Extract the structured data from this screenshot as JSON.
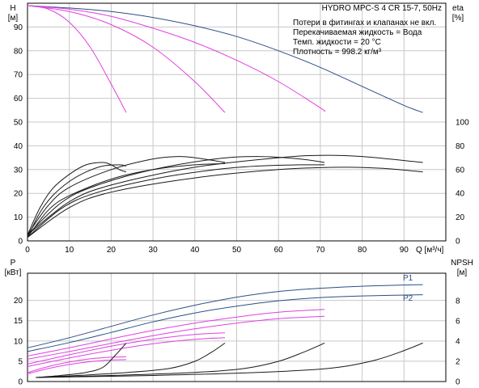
{
  "header": {
    "title": "HYDRO MPC-S 4 CR 15-7, 50Hz",
    "notes": [
      "Потери в фитингах и клапанах не вкл.",
      "Перекачиваемая жидкость = Вода",
      "Темп. жидкости = 20 °C",
      "Плотность = 998.2 кг/м³"
    ]
  },
  "colors": {
    "frame": "#000000",
    "grid": "#c8c8c8",
    "blue": "#2b4f86",
    "magenta": "#e040e0",
    "black": "#1a1a1a"
  },
  "chart_data": [
    {
      "id": "top",
      "type": "line",
      "xlabel": "Q [м³/ч]",
      "xlim": [
        0,
        100
      ],
      "xticks": [
        0,
        10,
        20,
        30,
        40,
        50,
        60,
        70,
        80,
        90
      ],
      "left_axis": {
        "label": "H",
        "unit": "[м]",
        "lim": [
          0,
          100
        ],
        "ticks": [
          0,
          10,
          20,
          30,
          40,
          50,
          60,
          70,
          80,
          90
        ]
      },
      "right_axis": {
        "label": "eta",
        "unit": "[%]",
        "lim": [
          0,
          200
        ],
        "ticks": [
          0,
          20,
          40,
          60,
          80,
          100
        ]
      },
      "grid": true,
      "series": [
        {
          "axis": "left",
          "color": "blue",
          "x": [
            0,
            10,
            20,
            30,
            40,
            50,
            60,
            70,
            80,
            90,
            94.5
          ],
          "y": [
            99,
            98,
            96.5,
            94,
            90.5,
            86,
            80,
            73,
            65,
            57,
            54
          ]
        },
        {
          "axis": "left",
          "color": "magenta",
          "x": [
            0,
            10,
            20,
            30,
            40,
            50,
            60,
            70,
            71
          ],
          "y": [
            99,
            97.5,
            94.5,
            89.5,
            83.5,
            76,
            67,
            56,
            54.5
          ]
        },
        {
          "axis": "left",
          "color": "magenta",
          "x": [
            0,
            10,
            20,
            30,
            40,
            47.2
          ],
          "y": [
            99,
            96.5,
            91,
            81.5,
            67,
            54
          ]
        },
        {
          "axis": "left",
          "color": "magenta",
          "x": [
            0,
            5,
            10,
            15,
            20,
            23.6
          ],
          "y": [
            99,
            97.5,
            92,
            81.5,
            66,
            54
          ]
        },
        {
          "axis": "right",
          "color": "black",
          "x": [
            0,
            3,
            6,
            10,
            14,
            18,
            20,
            22,
            23.6
          ],
          "y": [
            5,
            28,
            44,
            56,
            64,
            66,
            64,
            60,
            58
          ]
        },
        {
          "axis": "right",
          "color": "black",
          "x": [
            0,
            3,
            6,
            10,
            14,
            18,
            22,
            23.6
          ],
          "y": [
            3,
            24,
            38,
            50,
            58,
            63,
            64,
            63
          ]
        },
        {
          "axis": "right",
          "color": "black",
          "x": [
            0,
            5,
            10,
            20,
            30,
            36,
            40,
            47.2
          ],
          "y": [
            5,
            30,
            45,
            60,
            69,
            71,
            70,
            66
          ]
        },
        {
          "axis": "right",
          "color": "black",
          "x": [
            0,
            5,
            10,
            20,
            30,
            40,
            47.2
          ],
          "y": [
            3,
            26,
            38,
            52,
            60,
            64,
            65
          ]
        },
        {
          "axis": "right",
          "color": "black",
          "x": [
            0,
            8,
            16,
            30,
            45,
            55,
            65,
            71
          ],
          "y": [
            5,
            32,
            46,
            60,
            69,
            71,
            69,
            66
          ]
        },
        {
          "axis": "right",
          "color": "black",
          "x": [
            0,
            8,
            16,
            30,
            45,
            55,
            65,
            71
          ],
          "y": [
            3,
            27,
            40,
            52,
            60,
            63,
            64,
            64
          ]
        },
        {
          "axis": "right",
          "color": "black",
          "x": [
            0,
            10,
            20,
            40,
            60,
            70,
            80,
            94.5
          ],
          "y": [
            5,
            33,
            47,
            62,
            70,
            72,
            71,
            66
          ]
        },
        {
          "axis": "right",
          "color": "black",
          "x": [
            0,
            10,
            20,
            40,
            60,
            75,
            85,
            94.5
          ],
          "y": [
            3,
            28,
            41,
            53,
            60,
            62,
            61,
            58
          ]
        }
      ]
    },
    {
      "id": "bottom",
      "type": "line",
      "xlim": [
        0,
        100
      ],
      "left_axis": {
        "label": "P",
        "unit": "[кВт]",
        "lim": [
          0,
          26.7
        ],
        "ticks": [
          0,
          5,
          10,
          15,
          20
        ]
      },
      "right_axis": {
        "label": "NPSH",
        "unit": "[м]",
        "lim": [
          0,
          10.7
        ],
        "ticks": [
          0,
          2,
          4,
          6,
          8
        ]
      },
      "grid": true,
      "annotations": [
        "P1",
        "P2"
      ],
      "series": [
        {
          "axis": "left",
          "color": "blue",
          "name": "P1",
          "x": [
            0,
            10,
            20,
            30,
            40,
            50,
            60,
            70,
            80,
            94.5
          ],
          "y": [
            8.3,
            10.8,
            13.6,
            16.4,
            18.8,
            20.8,
            22.2,
            23.0,
            23.5,
            23.9
          ]
        },
        {
          "axis": "left",
          "color": "blue",
          "name": "P2",
          "x": [
            0,
            10,
            20,
            30,
            40,
            50,
            60,
            70,
            80,
            94.5
          ],
          "y": [
            7.4,
            9.6,
            12.1,
            14.7,
            16.9,
            18.6,
            19.9,
            20.7,
            21.1,
            21.4
          ]
        },
        {
          "axis": "left",
          "color": "magenta",
          "x": [
            0,
            10,
            20,
            30,
            40,
            50,
            60,
            71
          ],
          "y": [
            6.3,
            8.3,
            10.5,
            12.6,
            14.4,
            15.9,
            17.1,
            17.8
          ]
        },
        {
          "axis": "left",
          "color": "magenta",
          "x": [
            0,
            10,
            20,
            30,
            40,
            50,
            60,
            71
          ],
          "y": [
            5.5,
            7.4,
            9.4,
            11.3,
            13.0,
            14.4,
            15.5,
            16.1
          ]
        },
        {
          "axis": "left",
          "color": "magenta",
          "x": [
            0,
            10,
            20,
            30,
            40,
            47.2
          ],
          "y": [
            4.3,
            6.6,
            8.7,
            10.4,
            11.6,
            12.0
          ]
        },
        {
          "axis": "left",
          "color": "magenta",
          "x": [
            0,
            10,
            20,
            30,
            40,
            47.2
          ],
          "y": [
            3.7,
            5.8,
            7.7,
            9.3,
            10.4,
            10.8
          ]
        },
        {
          "axis": "left",
          "color": "magenta",
          "x": [
            0,
            5,
            10,
            15,
            20,
            23.6
          ],
          "y": [
            2.2,
            3.7,
            4.8,
            5.6,
            6.0,
            6.1
          ]
        },
        {
          "axis": "left",
          "color": "magenta",
          "x": [
            0,
            5,
            10,
            15,
            20,
            23.6
          ],
          "y": [
            1.9,
            3.2,
            4.2,
            4.9,
            5.3,
            5.4
          ]
        },
        {
          "axis": "right",
          "color": "black",
          "x": [
            2,
            8,
            14,
            18,
            21,
            23.6
          ],
          "y": [
            0.4,
            0.6,
            0.9,
            1.4,
            2.6,
            3.8
          ]
        },
        {
          "axis": "right",
          "color": "black",
          "x": [
            2,
            12,
            24,
            34,
            40,
            44,
            47.2
          ],
          "y": [
            0.4,
            0.6,
            0.9,
            1.3,
            2.0,
            2.9,
            3.8
          ]
        },
        {
          "axis": "right",
          "color": "black",
          "x": [
            2,
            20,
            40,
            52,
            60,
            66,
            71
          ],
          "y": [
            0.4,
            0.6,
            0.9,
            1.3,
            2.0,
            2.9,
            3.8
          ]
        },
        {
          "axis": "right",
          "color": "black",
          "x": [
            2,
            30,
            55,
            72,
            82,
            89,
            94.5
          ],
          "y": [
            0.4,
            0.6,
            0.9,
            1.3,
            2.0,
            2.9,
            3.8
          ]
        }
      ]
    }
  ]
}
